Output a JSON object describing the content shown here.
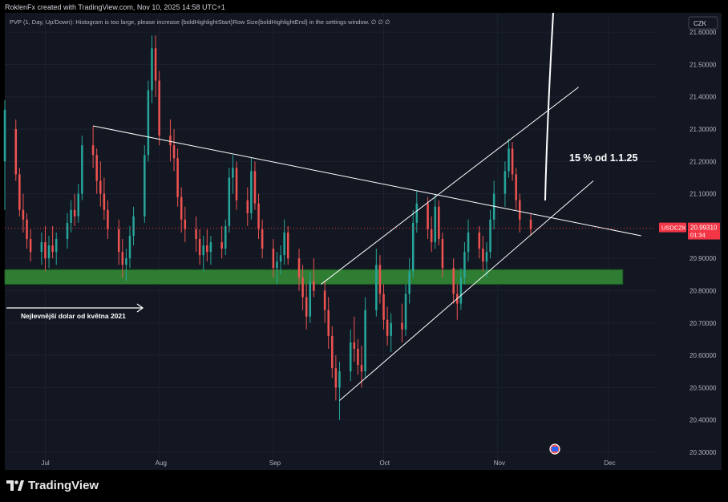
{
  "header": {
    "credit": "RoklenFx created with TradingView.com, Nov 10, 2025 14:58 UTC+1"
  },
  "indicator": {
    "text": "PVP (1, Day, Up/Down): Histogram is too large, please increase {boldHighlightStart}Row Size{boldHighlightEnd} in the settings window.  ∅  ∅  ∅"
  },
  "currency_button": "CZK",
  "footer": {
    "brand": "TradingView"
  },
  "colors": {
    "up": "#26a69a",
    "down": "#ef5350",
    "zone": "#2e7d32",
    "price_tag": "#f23645",
    "background": "#131722",
    "grid": "#1c2030",
    "lines": "#ffffff",
    "text": "#b2b5be"
  },
  "chart_data": {
    "type": "candlestick",
    "symbol": "USDCZK",
    "last_price": 20.9931,
    "countdown": "01:34",
    "y_ticks": [
      21.6,
      21.5,
      21.4,
      21.3,
      21.2,
      21.1,
      20.9,
      20.8,
      20.7,
      20.6,
      20.5,
      20.4,
      20.3
    ],
    "y_tick_labels": [
      "21.60000",
      "21.50000",
      "21.40000",
      "21.30000",
      "21.20000",
      "21.10000",
      "20.90000",
      "20.80000",
      "20.70000",
      "20.60000",
      "20.50000",
      "20.40000",
      "20.30000"
    ],
    "ylim": [
      20.27,
      21.66
    ],
    "x_ticks": [
      "Jul",
      "Aug",
      "Sep",
      "Oct",
      "Nov",
      "Dec"
    ],
    "x_range": [
      "2025-06-20",
      "2025-12-14"
    ],
    "support_zone": {
      "low": 20.82,
      "high": 20.865,
      "from": "2025-06-20",
      "to": "2025-12-05"
    },
    "support_label": "Nejlevnější dolar od května 2021",
    "annotation": "15 % od 1.1.25",
    "trend_lines": [
      {
        "name": "descending resistance",
        "from": [
          "2025-07-14",
          21.31
        ],
        "to": [
          "2025-12-10",
          20.97
        ]
      },
      {
        "name": "channel lower",
        "from": [
          "2025-09-19",
          20.46
        ],
        "to": [
          "2025-11-27",
          21.14
        ]
      },
      {
        "name": "channel upper",
        "from": [
          "2025-09-14",
          20.82
        ],
        "to": [
          "2025-11-23",
          21.43
        ]
      }
    ],
    "candles": [
      {
        "date": "2025-06-20",
        "o": 21.2,
        "h": 21.39,
        "l": 21.05,
        "c": 21.36
      },
      {
        "date": "2025-06-23",
        "o": 21.3,
        "h": 21.33,
        "l": 21.14,
        "c": 21.16
      },
      {
        "date": "2025-06-24",
        "o": 21.16,
        "h": 21.18,
        "l": 21.03,
        "c": 21.05
      },
      {
        "date": "2025-06-25",
        "o": 21.05,
        "h": 21.1,
        "l": 20.98,
        "c": 21.02
      },
      {
        "date": "2025-06-26",
        "o": 21.02,
        "h": 21.04,
        "l": 20.93,
        "c": 20.96
      },
      {
        "date": "2025-06-27",
        "o": 20.96,
        "h": 20.99,
        "l": 20.89,
        "c": 20.92
      },
      {
        "date": "2025-06-30",
        "o": 20.92,
        "h": 20.98,
        "l": 20.88,
        "c": 20.95
      },
      {
        "date": "2025-07-01",
        "o": 20.95,
        "h": 21.0,
        "l": 20.86,
        "c": 20.9
      },
      {
        "date": "2025-07-02",
        "o": 20.9,
        "h": 20.97,
        "l": 20.87,
        "c": 20.94
      },
      {
        "date": "2025-07-03",
        "o": 20.94,
        "h": 21.0,
        "l": 20.9,
        "c": 20.92
      },
      {
        "date": "2025-07-04",
        "o": 20.92,
        "h": 20.98,
        "l": 20.88,
        "c": 20.96
      },
      {
        "date": "2025-07-07",
        "o": 20.96,
        "h": 21.04,
        "l": 20.93,
        "c": 21.01
      },
      {
        "date": "2025-07-08",
        "o": 21.01,
        "h": 21.08,
        "l": 20.98,
        "c": 21.05
      },
      {
        "date": "2025-07-09",
        "o": 21.05,
        "h": 21.1,
        "l": 21.0,
        "c": 21.03
      },
      {
        "date": "2025-07-10",
        "o": 21.03,
        "h": 21.13,
        "l": 21.01,
        "c": 21.1
      },
      {
        "date": "2025-07-11",
        "o": 21.1,
        "h": 21.28,
        "l": 21.08,
        "c": 21.25
      },
      {
        "date": "2025-07-14",
        "o": 21.25,
        "h": 21.31,
        "l": 21.18,
        "c": 21.22
      },
      {
        "date": "2025-07-15",
        "o": 21.22,
        "h": 21.24,
        "l": 21.1,
        "c": 21.14
      },
      {
        "date": "2025-07-16",
        "o": 21.14,
        "h": 21.2,
        "l": 21.06,
        "c": 21.1
      },
      {
        "date": "2025-07-17",
        "o": 21.1,
        "h": 21.15,
        "l": 21.02,
        "c": 21.05
      },
      {
        "date": "2025-07-18",
        "o": 21.05,
        "h": 21.08,
        "l": 20.96,
        "c": 20.99
      },
      {
        "date": "2025-07-21",
        "o": 20.99,
        "h": 21.02,
        "l": 20.88,
        "c": 20.92
      },
      {
        "date": "2025-07-22",
        "o": 20.92,
        "h": 20.96,
        "l": 20.84,
        "c": 20.88
      },
      {
        "date": "2025-07-23",
        "o": 20.88,
        "h": 20.93,
        "l": 20.83,
        "c": 20.9
      },
      {
        "date": "2025-07-24",
        "o": 20.9,
        "h": 21.0,
        "l": 20.87,
        "c": 20.97
      },
      {
        "date": "2025-07-25",
        "o": 20.97,
        "h": 21.06,
        "l": 20.94,
        "c": 21.03
      },
      {
        "date": "2025-07-28",
        "o": 21.03,
        "h": 21.25,
        "l": 21.01,
        "c": 21.22
      },
      {
        "date": "2025-07-29",
        "o": 21.22,
        "h": 21.45,
        "l": 21.2,
        "c": 21.42
      },
      {
        "date": "2025-07-30",
        "o": 21.42,
        "h": 21.59,
        "l": 21.38,
        "c": 21.55
      },
      {
        "date": "2025-07-31",
        "o": 21.55,
        "h": 21.59,
        "l": 21.4,
        "c": 21.45
      },
      {
        "date": "2025-08-01",
        "o": 21.45,
        "h": 21.48,
        "l": 21.25,
        "c": 21.28
      },
      {
        "date": "2025-08-04",
        "o": 21.28,
        "h": 21.33,
        "l": 21.2,
        "c": 21.25
      },
      {
        "date": "2025-08-05",
        "o": 21.25,
        "h": 21.3,
        "l": 21.17,
        "c": 21.21
      },
      {
        "date": "2025-08-06",
        "o": 21.21,
        "h": 21.24,
        "l": 21.06,
        "c": 21.09
      },
      {
        "date": "2025-08-07",
        "o": 21.09,
        "h": 21.12,
        "l": 20.98,
        "c": 21.02
      },
      {
        "date": "2025-08-08",
        "o": 21.02,
        "h": 21.06,
        "l": 20.95,
        "c": 20.99
      },
      {
        "date": "2025-08-11",
        "o": 20.99,
        "h": 21.03,
        "l": 20.92,
        "c": 20.96
      },
      {
        "date": "2025-08-12",
        "o": 20.96,
        "h": 20.99,
        "l": 20.88,
        "c": 20.91
      },
      {
        "date": "2025-08-13",
        "o": 20.91,
        "h": 20.97,
        "l": 20.86,
        "c": 20.94
      },
      {
        "date": "2025-08-14",
        "o": 20.94,
        "h": 20.99,
        "l": 20.89,
        "c": 20.92
      },
      {
        "date": "2025-08-15",
        "o": 20.92,
        "h": 20.97,
        "l": 20.88,
        "c": 20.95
      },
      {
        "date": "2025-08-18",
        "o": 20.95,
        "h": 21.0,
        "l": 20.9,
        "c": 20.93
      },
      {
        "date": "2025-08-19",
        "o": 20.93,
        "h": 21.02,
        "l": 20.91,
        "c": 21.0
      },
      {
        "date": "2025-08-20",
        "o": 21.0,
        "h": 21.18,
        "l": 20.98,
        "c": 21.15
      },
      {
        "date": "2025-08-21",
        "o": 21.15,
        "h": 21.22,
        "l": 21.1,
        "c": 21.18
      },
      {
        "date": "2025-08-22",
        "o": 21.18,
        "h": 21.2,
        "l": 21.05,
        "c": 21.08
      },
      {
        "date": "2025-08-25",
        "o": 21.08,
        "h": 21.12,
        "l": 21.0,
        "c": 21.04
      },
      {
        "date": "2025-08-26",
        "o": 21.04,
        "h": 21.21,
        "l": 21.02,
        "c": 21.17
      },
      {
        "date": "2025-08-27",
        "o": 21.17,
        "h": 21.2,
        "l": 21.05,
        "c": 21.07
      },
      {
        "date": "2025-08-28",
        "o": 21.07,
        "h": 21.1,
        "l": 20.96,
        "c": 20.99
      },
      {
        "date": "2025-08-29",
        "o": 20.99,
        "h": 21.02,
        "l": 20.9,
        "c": 20.93
      },
      {
        "date": "2025-09-01",
        "o": 20.93,
        "h": 20.96,
        "l": 20.84,
        "c": 20.87
      },
      {
        "date": "2025-09-02",
        "o": 20.87,
        "h": 20.92,
        "l": 20.82,
        "c": 20.89
      },
      {
        "date": "2025-09-03",
        "o": 20.89,
        "h": 20.94,
        "l": 20.85,
        "c": 20.91
      },
      {
        "date": "2025-09-04",
        "o": 20.91,
        "h": 21.02,
        "l": 20.88,
        "c": 20.98
      },
      {
        "date": "2025-09-05",
        "o": 20.98,
        "h": 21.0,
        "l": 20.88,
        "c": 20.9
      },
      {
        "date": "2025-09-08",
        "o": 20.9,
        "h": 20.93,
        "l": 20.8,
        "c": 20.84
      },
      {
        "date": "2025-09-09",
        "o": 20.84,
        "h": 20.88,
        "l": 20.74,
        "c": 20.78
      },
      {
        "date": "2025-09-10",
        "o": 20.78,
        "h": 20.82,
        "l": 20.68,
        "c": 20.72
      },
      {
        "date": "2025-09-11",
        "o": 20.72,
        "h": 20.86,
        "l": 20.7,
        "c": 20.83
      },
      {
        "date": "2025-09-12",
        "o": 20.83,
        "h": 20.9,
        "l": 20.78,
        "c": 20.8
      },
      {
        "date": "2025-09-15",
        "o": 20.8,
        "h": 20.83,
        "l": 20.7,
        "c": 20.74
      },
      {
        "date": "2025-09-16",
        "o": 20.74,
        "h": 20.78,
        "l": 20.62,
        "c": 20.66
      },
      {
        "date": "2025-09-17",
        "o": 20.66,
        "h": 20.69,
        "l": 20.53,
        "c": 20.56
      },
      {
        "date": "2025-09-18",
        "o": 20.56,
        "h": 20.6,
        "l": 20.46,
        "c": 20.5
      },
      {
        "date": "2025-09-19",
        "o": 20.5,
        "h": 20.58,
        "l": 20.4,
        "c": 20.55
      },
      {
        "date": "2025-09-22",
        "o": 20.55,
        "h": 20.68,
        "l": 20.52,
        "c": 20.64
      },
      {
        "date": "2025-09-23",
        "o": 20.64,
        "h": 20.72,
        "l": 20.58,
        "c": 20.62
      },
      {
        "date": "2025-09-24",
        "o": 20.62,
        "h": 20.65,
        "l": 20.54,
        "c": 20.57
      },
      {
        "date": "2025-09-25",
        "o": 20.57,
        "h": 20.63,
        "l": 20.5,
        "c": 20.55
      },
      {
        "date": "2025-09-26",
        "o": 20.55,
        "h": 20.78,
        "l": 20.53,
        "c": 20.74
      },
      {
        "date": "2025-09-29",
        "o": 20.74,
        "h": 20.93,
        "l": 20.72,
        "c": 20.88
      },
      {
        "date": "2025-09-30",
        "o": 20.88,
        "h": 20.91,
        "l": 20.76,
        "c": 20.79
      },
      {
        "date": "2025-10-01",
        "o": 20.79,
        "h": 20.82,
        "l": 20.68,
        "c": 20.71
      },
      {
        "date": "2025-10-02",
        "o": 20.71,
        "h": 20.75,
        "l": 20.63,
        "c": 20.66
      },
      {
        "date": "2025-10-03",
        "o": 20.66,
        "h": 20.73,
        "l": 20.61,
        "c": 20.7
      },
      {
        "date": "2025-10-06",
        "o": 20.7,
        "h": 20.76,
        "l": 20.64,
        "c": 20.68
      },
      {
        "date": "2025-10-07",
        "o": 20.68,
        "h": 20.82,
        "l": 20.66,
        "c": 20.79
      },
      {
        "date": "2025-10-08",
        "o": 20.79,
        "h": 20.9,
        "l": 20.76,
        "c": 20.86
      },
      {
        "date": "2025-10-09",
        "o": 20.86,
        "h": 21.05,
        "l": 20.84,
        "c": 21.01
      },
      {
        "date": "2025-10-10",
        "o": 21.01,
        "h": 21.11,
        "l": 20.98,
        "c": 21.07
      },
      {
        "date": "2025-10-13",
        "o": 21.07,
        "h": 21.09,
        "l": 20.96,
        "c": 20.99
      },
      {
        "date": "2025-10-14",
        "o": 20.99,
        "h": 21.03,
        "l": 20.92,
        "c": 20.95
      },
      {
        "date": "2025-10-15",
        "o": 20.95,
        "h": 21.1,
        "l": 20.93,
        "c": 21.06
      },
      {
        "date": "2025-10-16",
        "o": 21.06,
        "h": 21.08,
        "l": 20.94,
        "c": 20.96
      },
      {
        "date": "2025-10-17",
        "o": 20.96,
        "h": 20.98,
        "l": 20.84,
        "c": 20.87
      },
      {
        "date": "2025-10-20",
        "o": 20.87,
        "h": 20.9,
        "l": 20.76,
        "c": 20.79
      },
      {
        "date": "2025-10-21",
        "o": 20.79,
        "h": 20.82,
        "l": 20.71,
        "c": 20.76
      },
      {
        "date": "2025-10-22",
        "o": 20.76,
        "h": 20.87,
        "l": 20.74,
        "c": 20.84
      },
      {
        "date": "2025-10-23",
        "o": 20.84,
        "h": 20.95,
        "l": 20.82,
        "c": 20.92
      },
      {
        "date": "2025-10-24",
        "o": 20.92,
        "h": 21.02,
        "l": 20.89,
        "c": 20.98
      },
      {
        "date": "2025-10-27",
        "o": 20.98,
        "h": 21.0,
        "l": 20.9,
        "c": 20.93
      },
      {
        "date": "2025-10-28",
        "o": 20.93,
        "h": 20.97,
        "l": 20.86,
        "c": 20.89
      },
      {
        "date": "2025-10-29",
        "o": 20.89,
        "h": 20.95,
        "l": 20.84,
        "c": 20.92
      },
      {
        "date": "2025-10-30",
        "o": 20.92,
        "h": 21.05,
        "l": 20.9,
        "c": 21.02
      },
      {
        "date": "2025-10-31",
        "o": 21.02,
        "h": 21.14,
        "l": 20.99,
        "c": 21.1
      },
      {
        "date": "2025-11-03",
        "o": 21.1,
        "h": 21.2,
        "l": 21.06,
        "c": 21.17
      },
      {
        "date": "2025-11-04",
        "o": 21.17,
        "h": 21.27,
        "l": 21.15,
        "c": 21.24
      },
      {
        "date": "2025-11-05",
        "o": 21.24,
        "h": 21.26,
        "l": 21.14,
        "c": 21.16
      },
      {
        "date": "2025-11-06",
        "o": 21.16,
        "h": 21.18,
        "l": 21.05,
        "c": 21.08
      },
      {
        "date": "2025-11-07",
        "o": 21.08,
        "h": 21.1,
        "l": 20.98,
        "c": 21.02
      },
      {
        "date": "2025-11-10",
        "o": 21.02,
        "h": 21.04,
        "l": 20.97,
        "c": 20.99
      }
    ]
  }
}
